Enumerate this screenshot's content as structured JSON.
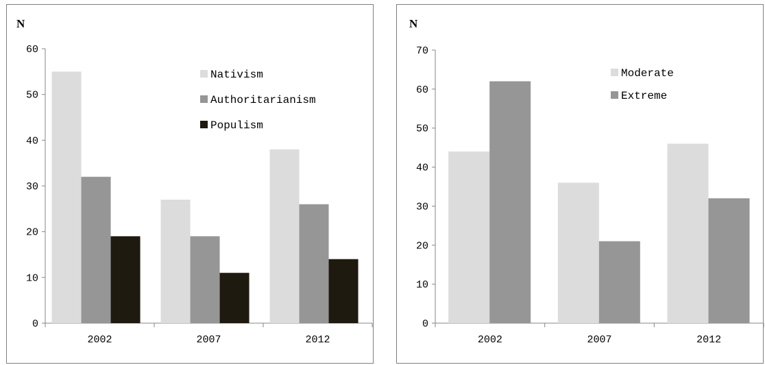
{
  "chart_data": [
    {
      "type": "bar",
      "ylabel": "N",
      "ylim": [
        0,
        60
      ],
      "yticks": [
        0,
        10,
        20,
        30,
        40,
        50,
        60
      ],
      "categories": [
        "2002",
        "2007",
        "2012"
      ],
      "legend_position": "top-right",
      "grid": false,
      "series": [
        {
          "name": "Nativism",
          "values": [
            55,
            27,
            38
          ],
          "color": "#dcdcdc"
        },
        {
          "name": "Authoritarianism",
          "values": [
            32,
            19,
            26
          ],
          "color": "#969696"
        },
        {
          "name": "Populism",
          "values": [
            19,
            11,
            14
          ],
          "color": "#1e1a10"
        }
      ]
    },
    {
      "type": "bar",
      "ylabel": "N",
      "ylim": [
        0,
        70
      ],
      "yticks": [
        0,
        10,
        20,
        30,
        40,
        50,
        60,
        70
      ],
      "categories": [
        "2002",
        "2007",
        "2012"
      ],
      "legend_position": "top-right",
      "grid": false,
      "series": [
        {
          "name": "Moderate",
          "values": [
            44,
            36,
            46
          ],
          "color": "#dcdcdc"
        },
        {
          "name": "Extreme",
          "values": [
            62,
            21,
            32
          ],
          "color": "#969696"
        }
      ]
    }
  ]
}
